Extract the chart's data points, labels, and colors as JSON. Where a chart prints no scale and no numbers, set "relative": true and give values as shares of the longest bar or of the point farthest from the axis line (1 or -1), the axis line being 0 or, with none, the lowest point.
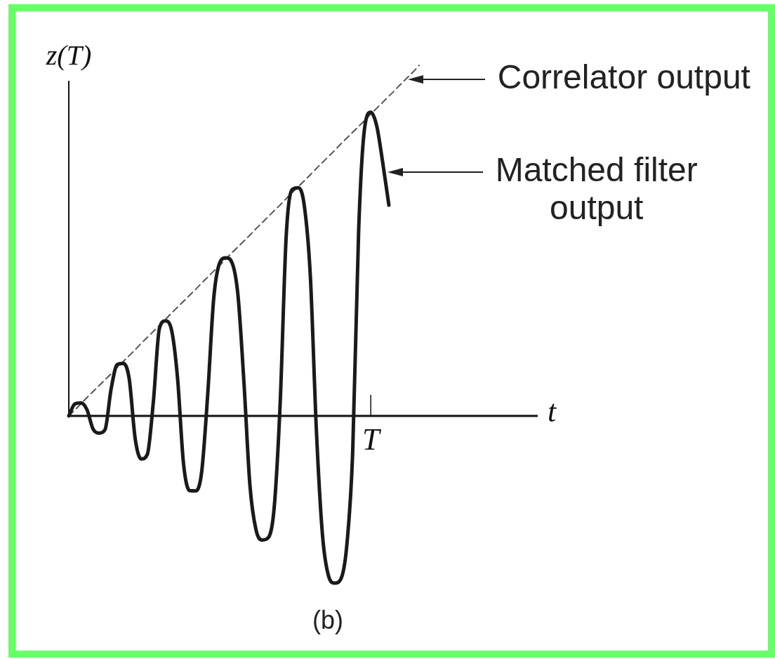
{
  "chart_data": {
    "type": "line",
    "xlabel": "t",
    "ylabel": "z(T)",
    "relative": true,
    "categories": [
      null,
      null,
      null,
      null,
      null,
      null,
      null,
      null,
      null,
      null,
      null,
      null,
      null,
      null,
      null,
      null,
      null,
      null,
      null,
      null,
      null,
      null,
      null,
      null,
      null,
      null,
      null,
      null,
      null,
      null,
      null,
      null,
      null,
      null,
      null,
      null,
      null,
      null,
      null,
      null,
      null,
      null,
      null,
      null,
      null,
      null,
      null,
      null,
      null,
      null,
      null,
      null,
      null,
      null,
      null,
      null,
      null,
      null,
      null
    ],
    "series": [
      {
        "color": "#1a1a1a",
        "values": [
          0,
          0.034,
          0.037,
          0.018,
          -0.037,
          -0.049,
          -0.039,
          0.076,
          0.146,
          0.15,
          0.106,
          -0.066,
          -0.123,
          -0.11,
          0.04,
          0.249,
          0.271,
          0.246,
          0.109,
          -0.137,
          -0.213,
          -0.214,
          -0.16,
          0.061,
          0.336,
          0.437,
          0.451,
          0.438,
          0.346,
          0.096,
          -0.2,
          -0.325,
          -0.354,
          -0.348,
          -0.263,
          0.037,
          0.514,
          0.646,
          0.651,
          0.599,
          0.397,
          -0.043,
          -0.339,
          -0.456,
          -0.477,
          -0.467,
          -0.375,
          -0.106,
          0.533,
          0.824,
          0.866,
          0.826,
          0.72,
          0.601,
          null,
          null,
          null,
          null,
          null
        ]
      },
      {
        "color": "#555555",
        "line_style": "dashed",
        "values": [
          0,
          0.017,
          0.034,
          0.052,
          0.069,
          0.086,
          0.103,
          0.12,
          0.138,
          0.155,
          0.172,
          0.189,
          0.207,
          0.224,
          0.241,
          0.258,
          0.275,
          0.293,
          0.31,
          0.327,
          0.344,
          0.361,
          0.379,
          0.396,
          0.413,
          0.43,
          0.448,
          0.465,
          0.482,
          0.499,
          0.516,
          0.534,
          0.551,
          0.568,
          0.585,
          0.602,
          0.62,
          0.637,
          0.654,
          0.671,
          0.688,
          0.706,
          0.723,
          0.74,
          0.757,
          0.775,
          0.792,
          0.809,
          0.826,
          0.843,
          0.861,
          0.878,
          0.895,
          0.912,
          0.929,
          0.947,
          0.964,
          0.981,
          1
        ]
      }
    ],
    "annotations": [
      "Correlator output",
      "Matched filter output",
      "T",
      "(b)"
    ]
  }
}
